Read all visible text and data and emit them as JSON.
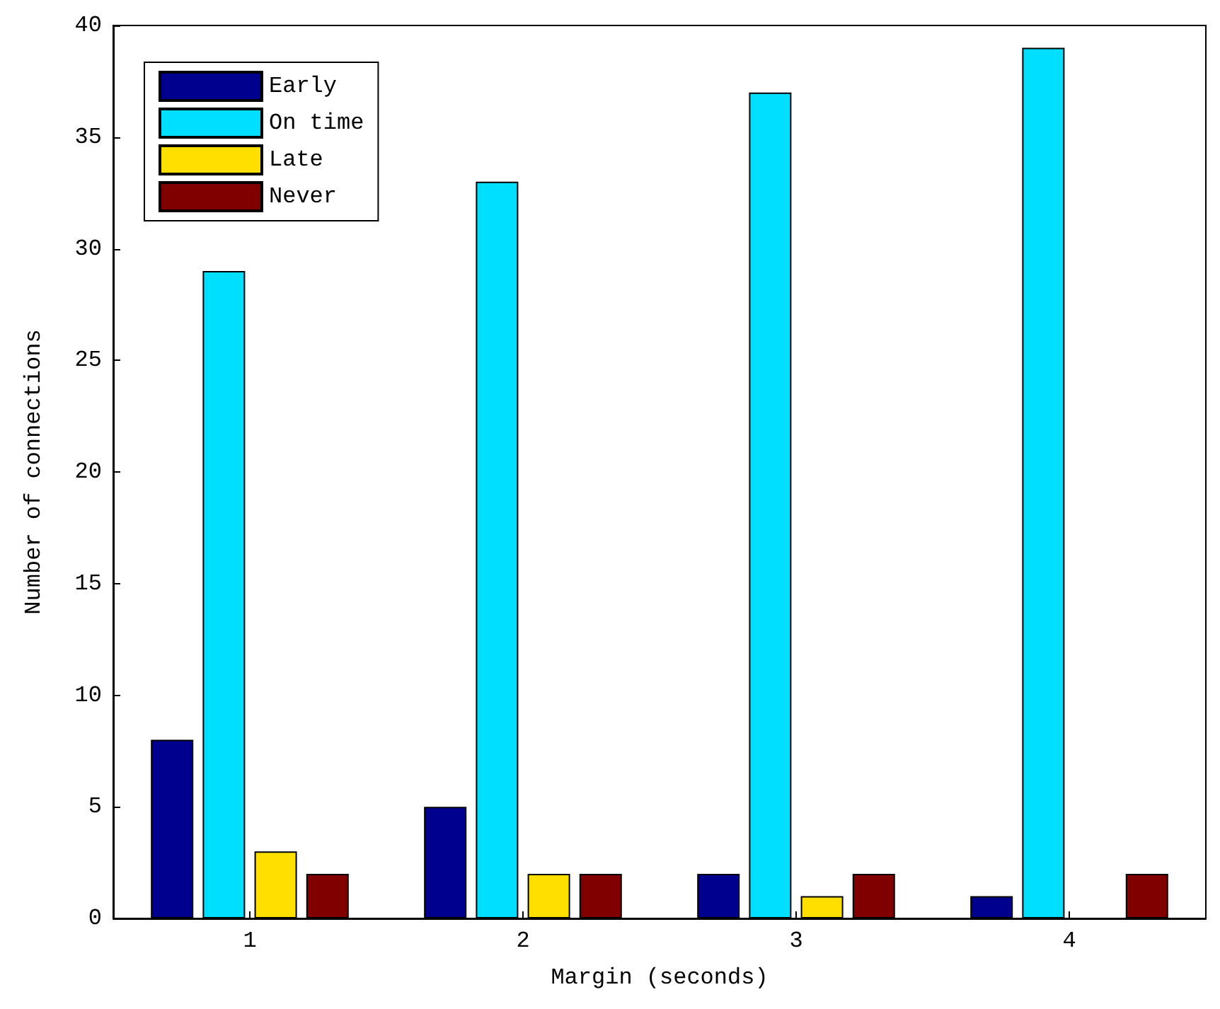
{
  "chart_data": {
    "type": "bar",
    "xlabel": "Margin (seconds)",
    "ylabel": "Number of connections",
    "categories": [
      "1",
      "2",
      "3",
      "4"
    ],
    "series": [
      {
        "name": "Early",
        "color": "#00008f",
        "values": [
          8,
          5,
          2,
          1
        ]
      },
      {
        "name": "On time",
        "color": "#00dfff",
        "values": [
          29,
          33,
          37,
          39
        ]
      },
      {
        "name": "Late",
        "color": "#ffdf00",
        "values": [
          3,
          2,
          1,
          null
        ]
      },
      {
        "name": "Never",
        "color": "#800000",
        "values": [
          2,
          2,
          2,
          2
        ]
      }
    ],
    "ylim": [
      0,
      40
    ],
    "yticks": [
      0,
      5,
      10,
      15,
      20,
      25,
      30,
      35,
      40
    ],
    "grid": false,
    "legend": "top left"
  }
}
